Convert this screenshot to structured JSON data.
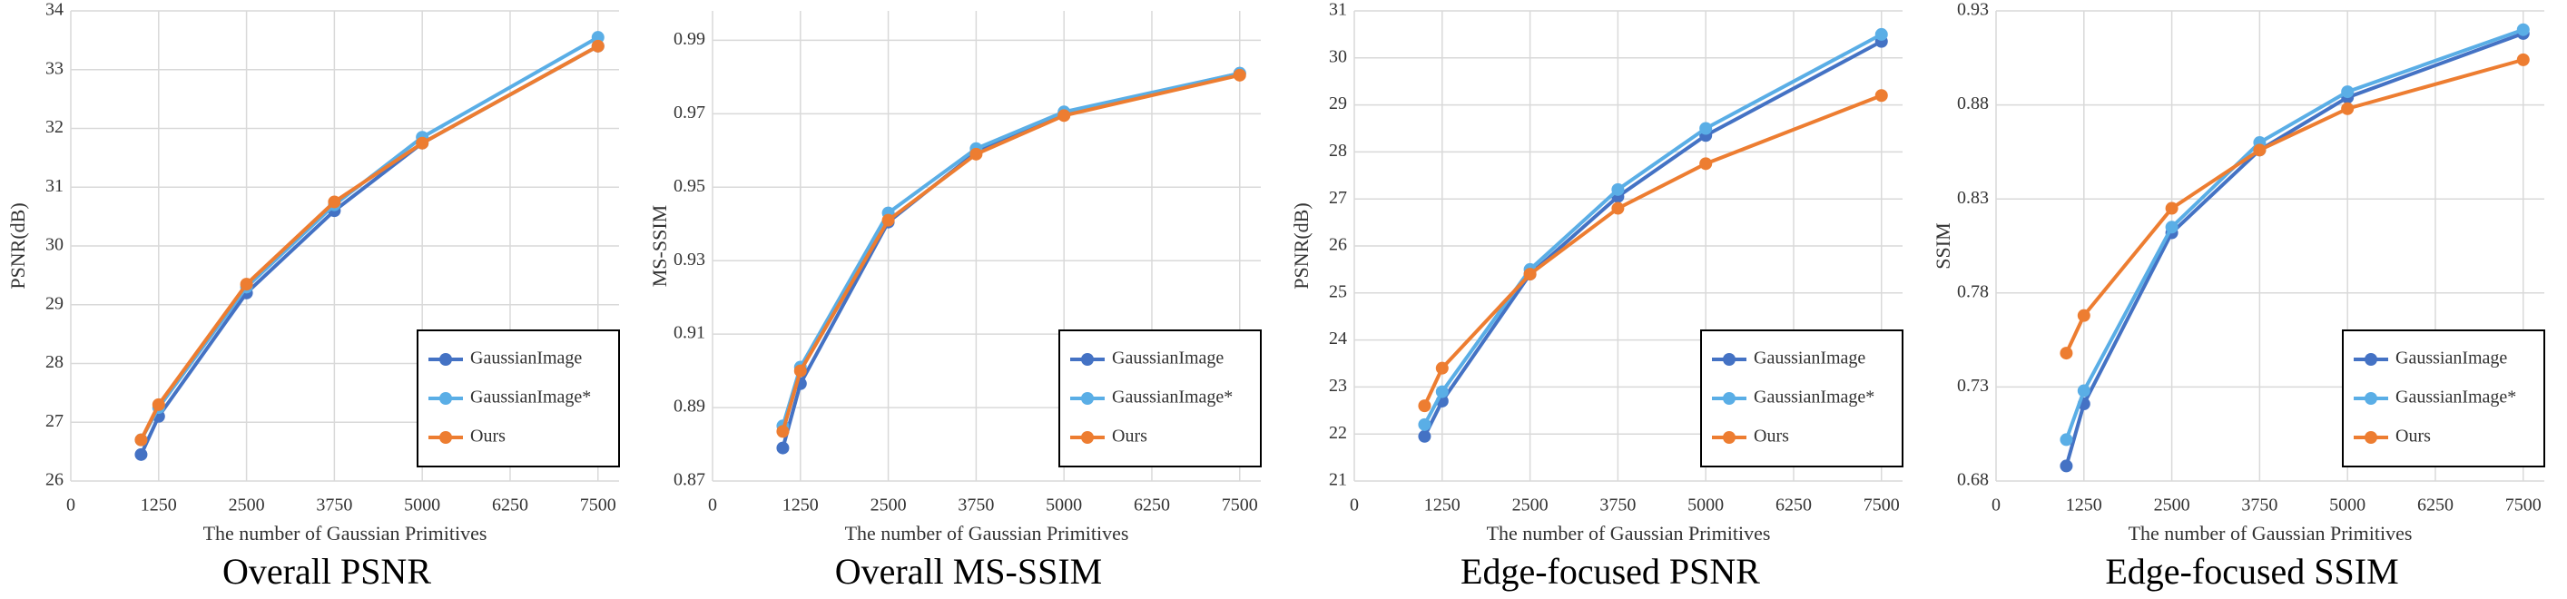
{
  "chart_data": [
    {
      "type": "line",
      "title": "Overall PSNR",
      "x_label": "The number of Gaussian Primitives",
      "y_label": "PSNR(dB)",
      "x": [
        1000,
        1250,
        2500,
        3750,
        5000,
        7500
      ],
      "xlim": [
        0,
        7800
      ],
      "xticks": [
        0,
        1250,
        2500,
        3750,
        5000,
        6250,
        7500
      ],
      "ylim": [
        26,
        34
      ],
      "yticks": [
        26,
        27,
        28,
        29,
        30,
        31,
        32,
        33,
        34
      ],
      "grid": true,
      "legend": "lower right",
      "series": [
        {
          "name": "GaussianImage",
          "color": "#4472c4",
          "values": [
            26.45,
            27.1,
            29.2,
            30.6,
            31.75,
            33.4
          ]
        },
        {
          "name": "GaussianImage*",
          "color": "#5aaee6",
          "values": [
            26.7,
            27.25,
            29.3,
            30.7,
            31.85,
            33.55
          ]
        },
        {
          "name": "Ours",
          "color": "#ed7d31",
          "values": [
            26.7,
            27.3,
            29.35,
            30.75,
            31.75,
            33.4
          ]
        }
      ]
    },
    {
      "type": "line",
      "title": "Overall MS-SSIM",
      "x_label": "The number of Gaussian Primitives",
      "y_label": "MS-SSIM",
      "x": [
        1000,
        1250,
        2500,
        3750,
        5000,
        7500
      ],
      "xlim": [
        0,
        7800
      ],
      "xticks": [
        0,
        1250,
        2500,
        3750,
        5000,
        6250,
        7500
      ],
      "ylim": [
        0.87,
        0.998
      ],
      "yticks": [
        0.87,
        0.89,
        0.91,
        0.93,
        0.95,
        0.97,
        0.99
      ],
      "grid": true,
      "legend": "lower right",
      "series": [
        {
          "name": "GaussianImage",
          "color": "#4472c4",
          "values": [
            0.879,
            0.8965,
            0.9405,
            0.9595,
            0.97,
            0.981
          ]
        },
        {
          "name": "GaussianImage*",
          "color": "#5aaee6",
          "values": [
            0.885,
            0.901,
            0.943,
            0.9605,
            0.9705,
            0.981
          ]
        },
        {
          "name": "Ours",
          "color": "#ed7d31",
          "values": [
            0.8835,
            0.9,
            0.941,
            0.959,
            0.9695,
            0.9805
          ]
        }
      ]
    },
    {
      "type": "line",
      "title": "Edge-focused PSNR",
      "x_label": "The number of Gaussian Primitives",
      "y_label": "PSNR(dB)",
      "x": [
        1000,
        1250,
        2500,
        3750,
        5000,
        7500
      ],
      "xlim": [
        0,
        7800
      ],
      "xticks": [
        0,
        1250,
        2500,
        3750,
        5000,
        6250,
        7500
      ],
      "ylim": [
        21,
        31
      ],
      "yticks": [
        21,
        22,
        23,
        24,
        25,
        26,
        27,
        28,
        29,
        30,
        31
      ],
      "grid": true,
      "legend": "lower right",
      "series": [
        {
          "name": "GaussianImage",
          "color": "#4472c4",
          "values": [
            21.95,
            22.7,
            25.4,
            27.05,
            28.35,
            30.35
          ]
        },
        {
          "name": "GaussianImage*",
          "color": "#5aaee6",
          "values": [
            22.2,
            22.9,
            25.5,
            27.2,
            28.5,
            30.5
          ]
        },
        {
          "name": "Ours",
          "color": "#ed7d31",
          "values": [
            22.6,
            23.4,
            25.4,
            26.8,
            27.75,
            29.2
          ]
        }
      ]
    },
    {
      "type": "line",
      "title": "Edge-focused SSIM",
      "x_label": "The number of Gaussian Primitives",
      "y_label": "SSIM",
      "x": [
        1000,
        1250,
        2500,
        3750,
        5000,
        7500
      ],
      "xlim": [
        0,
        7800
      ],
      "xticks": [
        0,
        1250,
        2500,
        3750,
        5000,
        6250,
        7500
      ],
      "ylim": [
        0.68,
        0.93
      ],
      "yticks": [
        0.68,
        0.73,
        0.78,
        0.83,
        0.88,
        0.93
      ],
      "grid": true,
      "legend": "lower right",
      "series": [
        {
          "name": "GaussianImage",
          "color": "#4472c4",
          "values": [
            0.688,
            0.721,
            0.812,
            0.856,
            0.884,
            0.918
          ]
        },
        {
          "name": "GaussianImage*",
          "color": "#5aaee6",
          "values": [
            0.702,
            0.728,
            0.815,
            0.86,
            0.887,
            0.92
          ]
        },
        {
          "name": "Ours",
          "color": "#ed7d31",
          "values": [
            0.748,
            0.768,
            0.825,
            0.856,
            0.878,
            0.904
          ]
        }
      ]
    }
  ]
}
